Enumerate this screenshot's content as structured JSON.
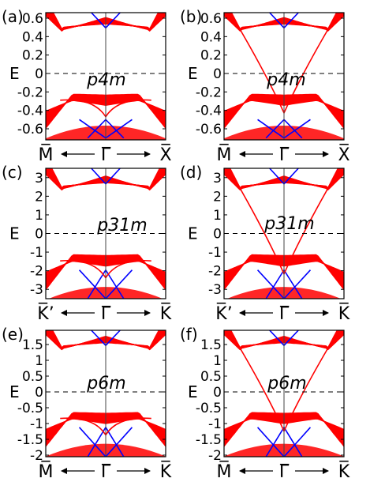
{
  "figure": {
    "panels": [
      {
        "id": "a",
        "label": "(a)",
        "group": "p4m",
        "ylabel": "E",
        "yticks": [
          "0.6",
          "0.4",
          "0.2",
          "0",
          "-0.2",
          "-0.4",
          "-0.6"
        ],
        "ytick_values": [
          0.6,
          0.4,
          0.2,
          0,
          -0.2,
          -0.4,
          -0.6
        ],
        "ylim": [
          -0.72,
          0.66
        ],
        "klabels": [
          "M̅",
          "Γ̅",
          "X̅"
        ],
        "variant": "gapped",
        "edge": "crossing-at-gamma"
      },
      {
        "id": "b",
        "label": "(b)",
        "group": "p4m",
        "ylabel": "E",
        "yticks": [
          "0.6",
          "0.4",
          "0.2",
          "0",
          "-0.2",
          "-0.4",
          "-0.6"
        ],
        "ytick_values": [
          0.6,
          0.4,
          0.2,
          0,
          -0.2,
          -0.4,
          -0.6
        ],
        "ylim": [
          -0.72,
          0.66
        ],
        "klabels": [
          "M̅",
          "Γ̅",
          "X̅"
        ],
        "variant": "gapped",
        "edge": "through-gap"
      },
      {
        "id": "c",
        "label": "(c)",
        "group": "p31m",
        "ylabel": "E",
        "yticks": [
          "3",
          "2",
          "1",
          "0",
          "-1",
          "-2",
          "-3"
        ],
        "ytick_values": [
          3,
          2,
          1,
          0,
          -1,
          -2,
          -3
        ],
        "ylim": [
          -3.5,
          3.5
        ],
        "klabels": [
          "K̅’",
          "Γ̅",
          "K̅"
        ],
        "variant": "gapped",
        "edge": "crossing-at-gamma"
      },
      {
        "id": "d",
        "label": "(d)",
        "group": "p31m",
        "ylabel": "E",
        "yticks": [
          "3",
          "2",
          "1",
          "0",
          "-1",
          "-2",
          "-3"
        ],
        "ytick_values": [
          3,
          2,
          1,
          0,
          -1,
          -2,
          -3
        ],
        "ylim": [
          -3.5,
          3.5
        ],
        "klabels": [
          "K̅’",
          "Γ̅",
          "K̅"
        ],
        "variant": "gapped",
        "edge": "through-gap"
      },
      {
        "id": "e",
        "label": "(e)",
        "group": "p6m",
        "ylabel": "E",
        "yticks": [
          "1.5",
          "1",
          "0.5",
          "0",
          "-0.5",
          "-1",
          "-1.5",
          "-2"
        ],
        "ytick_values": [
          1.5,
          1,
          0.5,
          0,
          -0.5,
          -1,
          -1.5,
          -2
        ],
        "ylim": [
          -2.05,
          1.95
        ],
        "klabels": [
          "M̅",
          "Γ̅",
          "K̅"
        ],
        "variant": "gapped",
        "edge": "crossing-at-gamma"
      },
      {
        "id": "f",
        "label": "(f)",
        "group": "p6m",
        "ylabel": "E",
        "yticks": [
          "1.5",
          "1",
          "0.5",
          "0",
          "-0.5",
          "-1",
          "-1.5",
          "-2"
        ],
        "ytick_values": [
          1.5,
          1,
          0.5,
          0,
          -0.5,
          -1,
          -1.5,
          -2
        ],
        "ylim": [
          -2.05,
          1.95
        ],
        "klabels": [
          "M̅",
          "Γ̅",
          "K̅"
        ],
        "variant": "gapped",
        "edge": "through-gap"
      }
    ],
    "colors": {
      "bulk": "#ff0000",
      "edge": "#ff0000",
      "blue": "#0000ff",
      "axis": "#000000"
    }
  }
}
